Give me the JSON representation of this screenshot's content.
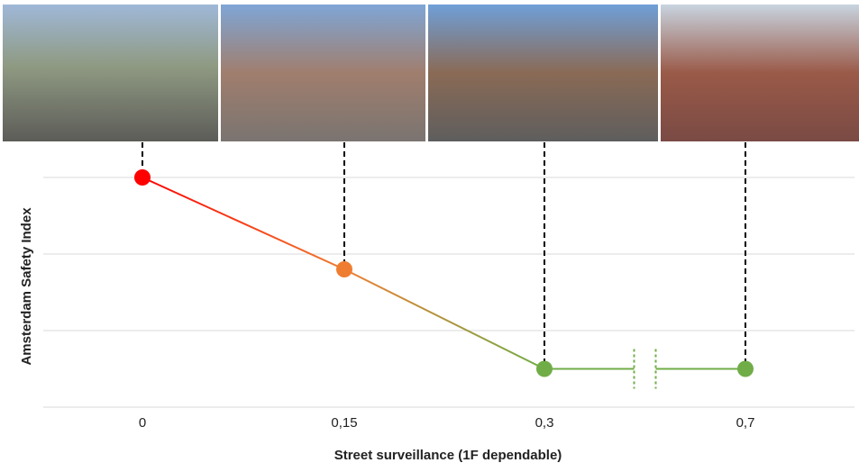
{
  "chart_data": {
    "type": "line",
    "x_label": "Street surveillance (1F dependable)",
    "y_label": "Amsterdam Safety Index",
    "categories": [
      "0",
      "0,15",
      "0,3",
      "0,7"
    ],
    "series": [
      {
        "values": [
          3.0,
          1.8,
          0.5,
          0.5
        ],
        "point_colors": [
          "#ff0000",
          "#ef7d31",
          "#70ad47",
          "#70ad47"
        ]
      }
    ],
    "ylim": [
      0,
      3
    ],
    "yticks": [
      0,
      1,
      2,
      3
    ],
    "grid": true,
    "axis_break": true
  }
}
